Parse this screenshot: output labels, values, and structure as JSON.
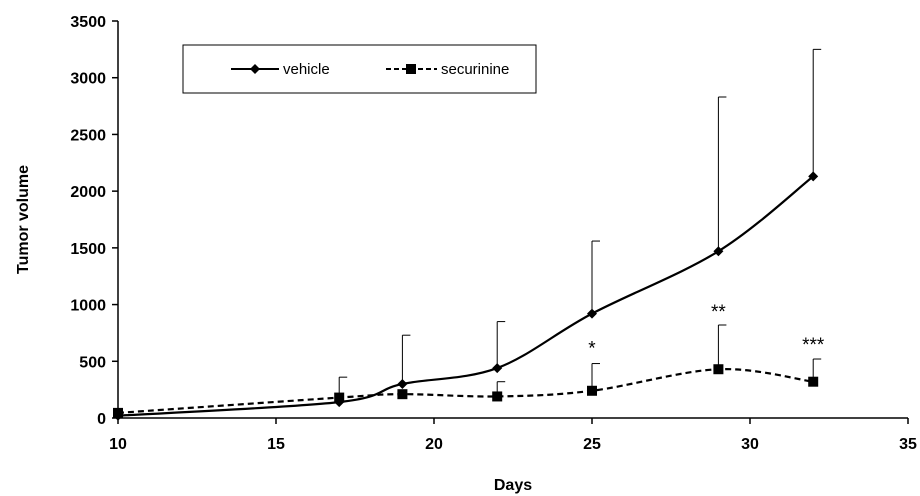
{
  "chart_data": {
    "type": "line",
    "title": "",
    "xlabel": "Days",
    "ylabel": "Tumor volume",
    "xlim": [
      10,
      35
    ],
    "ylim": [
      0,
      3500
    ],
    "x_ticks": [
      10,
      15,
      20,
      25,
      30,
      35
    ],
    "y_ticks": [
      0,
      500,
      1000,
      1500,
      2000,
      2500,
      3000,
      3500
    ],
    "grid": false,
    "legend": {
      "position": "top-left",
      "orientation": "horizontal"
    },
    "series": [
      {
        "name": "vehicle",
        "style": "solid",
        "marker": "diamond",
        "color": "#000000",
        "x": [
          10,
          17,
          19,
          22,
          25,
          29,
          32
        ],
        "y": [
          20,
          140,
          300,
          440,
          920,
          1470,
          2130
        ],
        "error": [
          0,
          0,
          430,
          410,
          640,
          1360,
          1120
        ]
      },
      {
        "name": "securinine",
        "style": "dashed",
        "marker": "square",
        "color": "#000000",
        "x": [
          10,
          17,
          19,
          22,
          25,
          29,
          32
        ],
        "y": [
          45,
          180,
          210,
          190,
          240,
          430,
          320
        ],
        "error": [
          0,
          180,
          0,
          130,
          240,
          390,
          200
        ]
      }
    ],
    "annotations": [
      {
        "text": "*",
        "x": 25,
        "y": 560
      },
      {
        "text": "**",
        "x": 29,
        "y": 880
      },
      {
        "text": "***",
        "x": 32,
        "y": 590
      }
    ]
  }
}
